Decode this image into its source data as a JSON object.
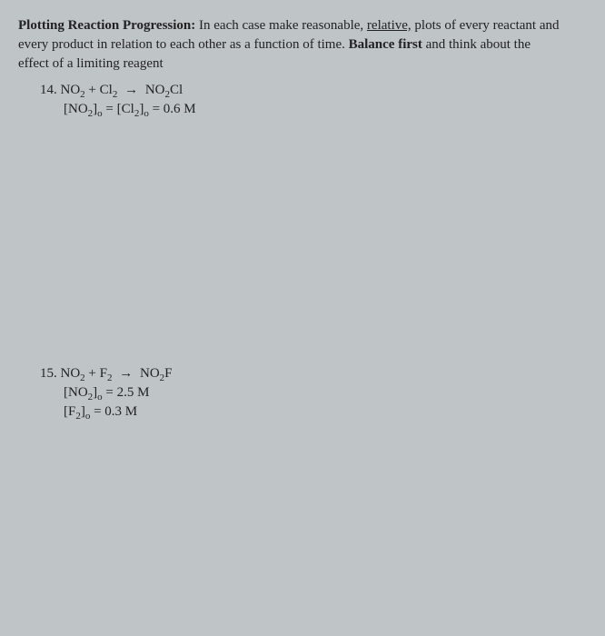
{
  "header": {
    "title_prefix": "Plotting Reaction Progression:",
    "line1_rest_a": "  In each case make reasonable, ",
    "underlined": "relative,",
    "line1_rest_b": " plots of every reactant and",
    "line2": "every product in relation to each other as a function of time.  ",
    "bold2": "Balance first",
    "line2_rest": " and think about the",
    "line3": "effect of a limiting reagent"
  },
  "p14": {
    "num": "14. ",
    "r1": "NO",
    "r1sub": "2",
    "plus": " + Cl",
    "r2sub": "2",
    "arrow": " → ",
    "prod": " NO",
    "psub": "2",
    "prod2": "Cl",
    "cond": "[NO",
    "condsub1": "2",
    "cond_mid": "]",
    "condsub_o1": "o",
    "cond_eq": " = [Cl",
    "condsub2": "2",
    "cond_end": "]",
    "condsub_o2": "o",
    "cond_val": "  = 0.6 M"
  },
  "p15": {
    "num": "15.  ",
    "r1": "NO",
    "r1sub": "2",
    "plus": " + F",
    "r2sub": "2",
    "arrow": " → ",
    "prod": " NO",
    "psub": "2",
    "prod2": "F",
    "cond1_a": "[NO",
    "cond1_sub": "2",
    "cond1_b": "]",
    "cond1_o": "o",
    "cond1_val": "  = 2.5 M",
    "cond2_a": "[F",
    "cond2_sub": "2",
    "cond2_b": "]",
    "cond2_o": "o",
    "cond2_val": "  = 0.3 M"
  }
}
